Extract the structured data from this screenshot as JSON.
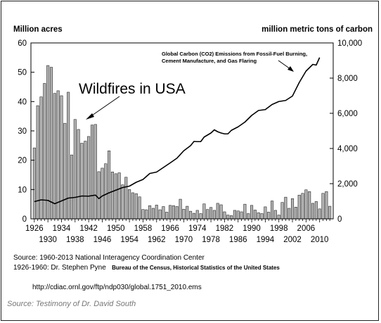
{
  "chart_data": {
    "type": "bar",
    "left_axis_label": "Million acres",
    "right_axis_label": "million metric tons of carbon",
    "left_ylim": [
      0,
      60
    ],
    "left_yticks": [
      0,
      10,
      20,
      30,
      40,
      50,
      60
    ],
    "right_ylim": [
      0,
      10000
    ],
    "right_yticks": [
      "0",
      "2,000",
      "4,000",
      "6,000",
      "8,000",
      "10,000"
    ],
    "xlim": [
      1925,
      2014
    ],
    "xticks_top": [
      "1926",
      "1934",
      "1942",
      "1950",
      "1958",
      "1966",
      "1974",
      "1982",
      "1990",
      "1998",
      "2006"
    ],
    "xticks_bottom": [
      "1930",
      "1938",
      "1946",
      "1954",
      "1962",
      "1970",
      "1978",
      "1986",
      "1994",
      "2002",
      "2010"
    ],
    "series": [
      {
        "name": "Wildfires in USA",
        "type": "bar",
        "axis": "left",
        "x": [
          1926,
          1927,
          1928,
          1929,
          1930,
          1931,
          1932,
          1933,
          1934,
          1935,
          1936,
          1937,
          1938,
          1939,
          1940,
          1941,
          1942,
          1943,
          1944,
          1945,
          1946,
          1947,
          1948,
          1949,
          1950,
          1951,
          1952,
          1953,
          1954,
          1955,
          1956,
          1957,
          1958,
          1959,
          1960,
          1961,
          1962,
          1963,
          1964,
          1965,
          1966,
          1967,
          1968,
          1969,
          1970,
          1971,
          1972,
          1973,
          1974,
          1975,
          1976,
          1977,
          1978,
          1979,
          1980,
          1981,
          1982,
          1983,
          1984,
          1985,
          1986,
          1987,
          1988,
          1989,
          1990,
          1991,
          1992,
          1993,
          1994,
          1995,
          1996,
          1997,
          1998,
          1999,
          2000,
          2001,
          2002,
          2003,
          2004,
          2005,
          2006,
          2007,
          2008,
          2009,
          2010,
          2011,
          2012,
          2013
        ],
        "values": [
          24.2,
          38.6,
          41.6,
          46.2,
          52.3,
          51.7,
          42.8,
          43.7,
          42.0,
          32.6,
          43.2,
          21.8,
          33.9,
          30.5,
          25.8,
          26.5,
          28.1,
          32.0,
          32.2,
          16.1,
          17.3,
          18.8,
          23.2,
          16.0,
          15.4,
          15.7,
          11.6,
          14.2,
          10.0,
          8.9,
          8.6,
          7.5,
          3.2,
          3.1,
          4.5,
          3.6,
          4.7,
          3.1,
          4.2,
          2.3,
          4.6,
          4.5,
          4.2,
          6.7,
          3.3,
          4.3,
          2.6,
          1.9,
          2.9,
          1.8,
          5.1,
          3.2,
          3.9,
          2.9,
          5.3,
          4.8,
          2.4,
          1.3,
          1.1,
          2.9,
          2.7,
          2.4,
          5.0,
          1.8,
          4.6,
          3.0,
          2.1,
          1.8,
          4.1,
          2.3,
          6.1,
          2.9,
          1.3,
          5.6,
          7.4,
          3.6,
          6.9,
          4.0,
          8.1,
          8.7,
          9.9,
          9.3,
          5.3,
          5.9,
          3.4,
          8.7,
          9.3,
          4.3
        ]
      },
      {
        "name": "Global Carbon (CO2) Emissions from Fossil-Fuel Burning, Cement Manufacture, and Gas Flaring",
        "type": "line",
        "axis": "right",
        "x": [
          1926,
          1928,
          1930,
          1932,
          1934,
          1936,
          1938,
          1940,
          1942,
          1944,
          1945,
          1946,
          1948,
          1950,
          1952,
          1954,
          1956,
          1958,
          1960,
          1962,
          1964,
          1966,
          1968,
          1970,
          1972,
          1973,
          1974,
          1975,
          1976,
          1978,
          1979,
          1980,
          1981,
          1982,
          1983,
          1984,
          1986,
          1988,
          1990,
          1992,
          1994,
          1996,
          1998,
          2000,
          2002,
          2004,
          2006,
          2007,
          2008,
          2009,
          2010
        ],
        "values": [
          980,
          1080,
          1050,
          860,
          1020,
          1180,
          1220,
          1300,
          1290,
          1350,
          1150,
          1300,
          1480,
          1630,
          1780,
          1860,
          2080,
          2240,
          2580,
          2660,
          2920,
          3180,
          3450,
          3870,
          4160,
          4400,
          4390,
          4390,
          4650,
          4880,
          5060,
          4950,
          4880,
          4830,
          4830,
          5030,
          5230,
          5500,
          5880,
          6160,
          6210,
          6500,
          6670,
          6730,
          6980,
          7750,
          8400,
          8590,
          8780,
          8740,
          9170
        ]
      }
    ],
    "annotations": {
      "wildfire_label": "Wildfires in USA",
      "carbon_label_line1": "Global Carbon (CO2) Emissions from Fossil-Fuel Burning,",
      "carbon_label_line2": "Cement Manufacture, and Gas Flaring"
    },
    "grid": false,
    "legend": "none"
  },
  "sources": {
    "line1": "Source:  1960-2013 National Interagency Coordination Center",
    "line2_a": "1926-1960: Dr. Stephen Pyne",
    "line2_b": "Bureau of the Census, Historical Statistics of the United States",
    "url": "http://cdiac.ornl.gov/ftp/ndp030/global.1751_2010.ems",
    "credit": "Source: Testimony of Dr. David South"
  },
  "colors": {
    "bar_fill": "#b4b4b4",
    "bar_stroke": "#2a2a2a",
    "line": "#000000",
    "credit_text": "#777777"
  }
}
